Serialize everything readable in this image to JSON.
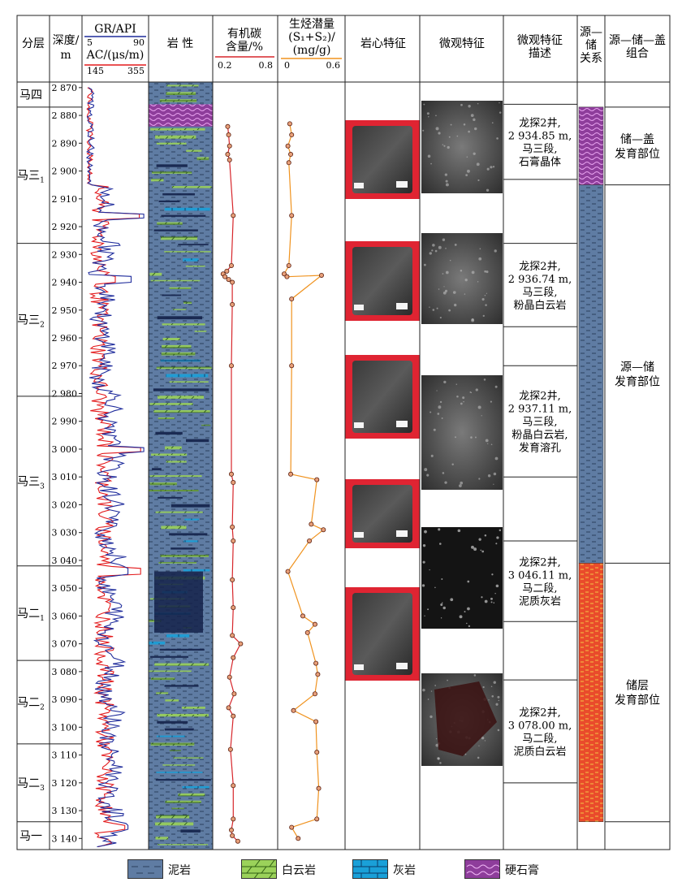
{
  "headers": {
    "layer": "分层",
    "depth": [
      "深度/",
      "m"
    ],
    "gr_title": "GR/API",
    "gr_min": "5",
    "gr_max": "90",
    "ac_title": "AC/(μs/m)",
    "ac_min": "145",
    "ac_max": "355",
    "lithology": "岩 性",
    "toc": [
      "有机碳",
      "含量/%"
    ],
    "toc_min": "0.2",
    "toc_max": "0.8",
    "s12": [
      "生烃潜量",
      "(S₁+S₂)/",
      "(mg/g)"
    ],
    "s12_min": "0",
    "s12_max": "0.6",
    "core": "岩心特征",
    "micro": "微观特征",
    "micro_desc": [
      "微观特征",
      "描述"
    ],
    "source_res": [
      "源—",
      "储",
      "关系"
    ],
    "assemblage": [
      "源—储—盖",
      "组合"
    ]
  },
  "layers": [
    {
      "name": "马四",
      "sub": "",
      "top": 2868,
      "bottom": 2877
    },
    {
      "name": "马三",
      "sub": "1",
      "top": 2877,
      "bottom": 2926
    },
    {
      "name": "马三",
      "sub": "2",
      "top": 2926,
      "bottom": 2981
    },
    {
      "name": "马三",
      "sub": "3",
      "top": 2981,
      "bottom": 3042
    },
    {
      "name": "马二",
      "sub": "1",
      "top": 3042,
      "bottom": 3076
    },
    {
      "name": "马二",
      "sub": "2",
      "top": 3076,
      "bottom": 3106
    },
    {
      "name": "马二",
      "sub": "3",
      "top": 3106,
      "bottom": 3134
    },
    {
      "name": "马一",
      "sub": "",
      "top": 3134,
      "bottom": 3144
    }
  ],
  "depth_ticks": [
    "2 870",
    "2 880",
    "2 890",
    "2 900",
    "2 910",
    "2 920",
    "2 930",
    "2 940",
    "2 950",
    "2 960",
    "2 970",
    "2 980",
    "2 990",
    "3 000",
    "3 010",
    "3 020",
    "3 030",
    "3 040",
    "3 050",
    "3 060",
    "3 070",
    "3 080",
    "3 090",
    "3 100",
    "3 110",
    "3 120",
    "3 130",
    "3 140"
  ],
  "descriptions": [
    {
      "lines": [
        "龙探2井,",
        "2 934.85 m,",
        "马三段,",
        "石膏晶体"
      ],
      "top": 2876,
      "bottom": 2903
    },
    {
      "lines": [
        "龙探2井,",
        "2 936.74 m,",
        "马三段,",
        "粉晶白云岩"
      ],
      "top": 2926,
      "bottom": 2956
    },
    {
      "lines": [
        "龙探2井,",
        "2 937.11 m,",
        "马三段,",
        "粉晶白云岩,",
        "发育溶孔"
      ],
      "top": 2970,
      "bottom": 3010
    },
    {
      "lines": [
        "龙探2井,",
        "3 046.11 m,",
        "马二段,",
        "泥质灰岩"
      ],
      "top": 3033,
      "bottom": 3062
    },
    {
      "lines": [
        "龙探2井,",
        "3 078.00 m,",
        "马二段,",
        "泥质白云岩"
      ],
      "top": 3083,
      "bottom": 3120
    }
  ],
  "assemblages": [
    {
      "lines": [
        "储—盖",
        "发育部位"
      ],
      "top": 2877,
      "bottom": 2905
    },
    {
      "lines": [
        "源—储",
        "发育部位"
      ],
      "top": 2905,
      "bottom": 3041
    },
    {
      "lines": [
        "储层",
        "发育部位"
      ],
      "top": 3041,
      "bottom": 3134
    }
  ],
  "source_reservoir_bands": [
    {
      "lithology": "anhydrite",
      "top": 2877,
      "bottom": 2905
    },
    {
      "lithology": "mudstone",
      "top": 2905,
      "bottom": 3041
    },
    {
      "lithology": "dolomite-red",
      "top": 3041,
      "bottom": 3134
    }
  ],
  "legend": [
    {
      "label": "泥岩",
      "pattern": "mudstone"
    },
    {
      "label": "白云岩",
      "pattern": "dolomite"
    },
    {
      "label": "灰岩",
      "pattern": "limestone"
    },
    {
      "label": "硬石膏",
      "pattern": "anhydrite"
    }
  ],
  "colors": {
    "gr_curve": "#1f2c9c",
    "ac_curve": "#e31a1c",
    "toc_curve": "#d7262b",
    "s12_curve": "#f0931f",
    "mudstone": "#5f7ca3",
    "dolomite": "#9bd25a",
    "limestone": "#1aa0d8",
    "anhydrite": "#8e3d9b",
    "core_bg": "#df2432",
    "reservoir_red": "#e94b2b"
  },
  "chart_data": {
    "type": "line",
    "depth_range": [
      2868,
      3144
    ],
    "series": [
      {
        "name": "有机碳含量/%",
        "xlim": [
          0.2,
          0.8
        ],
        "points": [
          [
            2884,
            0.31
          ],
          [
            2887,
            0.32
          ],
          [
            2891,
            0.33
          ],
          [
            2894,
            0.31
          ],
          [
            2896,
            0.33
          ],
          [
            2916,
            0.37
          ],
          [
            2934,
            0.35
          ],
          [
            2936,
            0.3
          ],
          [
            2937,
            0.26
          ],
          [
            2938,
            0.28
          ],
          [
            2939,
            0.32
          ],
          [
            2940,
            0.36
          ],
          [
            2948,
            0.36
          ],
          [
            2970,
            0.35
          ],
          [
            3009,
            0.35
          ],
          [
            3012,
            0.37
          ],
          [
            3028,
            0.36
          ],
          [
            3033,
            0.37
          ],
          [
            3047,
            0.36
          ],
          [
            3057,
            0.37
          ],
          [
            3067,
            0.36
          ],
          [
            3070,
            0.45
          ],
          [
            3075,
            0.37
          ],
          [
            3082,
            0.33
          ],
          [
            3088,
            0.38
          ],
          [
            3093,
            0.32
          ],
          [
            3096,
            0.37
          ],
          [
            3108,
            0.34
          ],
          [
            3121,
            0.37
          ],
          [
            3133,
            0.37
          ],
          [
            3137,
            0.35
          ],
          [
            3139,
            0.36
          ],
          [
            3141,
            0.42
          ]
        ]
      },
      {
        "name": "生烃潜量(S₁+S₂)/(mg/g)",
        "xlim": [
          0,
          0.6
        ],
        "points": [
          [
            2883,
            0.06
          ],
          [
            2887,
            0.08
          ],
          [
            2891,
            0.04
          ],
          [
            2894,
            0.07
          ],
          [
            2897,
            0.05
          ],
          [
            2916,
            0.08
          ],
          [
            2934,
            0.05
          ],
          [
            2937,
            0.0
          ],
          [
            2938,
            0.03
          ],
          [
            2937.5,
            0.4
          ],
          [
            2946,
            0.08
          ],
          [
            2970,
            0.08
          ],
          [
            3009,
            0.07
          ],
          [
            3011,
            0.35
          ],
          [
            3027,
            0.29
          ],
          [
            3029,
            0.42
          ],
          [
            3033,
            0.27
          ],
          [
            3044,
            0.04
          ],
          [
            3060,
            0.2
          ],
          [
            3063,
            0.33
          ],
          [
            3066,
            0.25
          ],
          [
            3077,
            0.34
          ],
          [
            3081,
            0.36
          ],
          [
            3088,
            0.33
          ],
          [
            3094,
            0.1
          ],
          [
            3098,
            0.34
          ],
          [
            3109,
            0.35
          ],
          [
            3122,
            0.37
          ],
          [
            3133,
            0.35
          ],
          [
            3136,
            0.08
          ],
          [
            3140,
            0.15
          ]
        ]
      }
    ],
    "axis_labels": [
      "有机碳含量/%",
      "生烃潜量(S₁+S₂)/(mg/g)",
      "深度/m"
    ]
  }
}
